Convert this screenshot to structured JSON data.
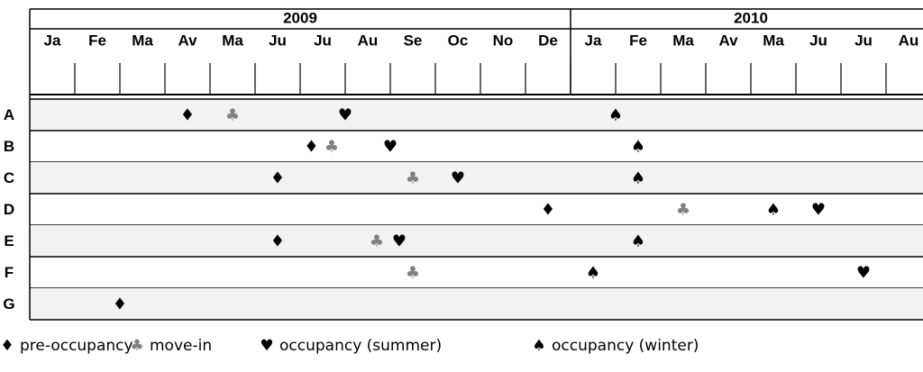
{
  "chart_data": {
    "type": "timeline",
    "years": [
      "2009",
      "2010"
    ],
    "months": [
      "Ja",
      "Fe",
      "Ma",
      "Av",
      "Ma",
      "Ju",
      "Ju",
      "Au",
      "Se",
      "Oc",
      "No",
      "De",
      "Ja",
      "Fe",
      "Ma",
      "Av",
      "Ma",
      "Ju",
      "Ju",
      "Au"
    ],
    "categories": [
      "A",
      "B",
      "C",
      "D",
      "E",
      "F",
      "G"
    ],
    "xlim": [
      0,
      20
    ],
    "series": [
      {
        "name": "pre-occupancy",
        "symbol": "♦",
        "color": "#000000",
        "values": [
          3.5,
          6.25,
          5.5,
          11.5,
          5.5,
          null,
          2
        ]
      },
      {
        "name": "move-in",
        "symbol": "♣",
        "color": "#808080",
        "values": [
          4.5,
          6.7,
          8.5,
          14.5,
          7.7,
          8.5,
          null
        ]
      },
      {
        "name": "occupancy (summer)",
        "symbol": "♥",
        "color": "#000000",
        "values": [
          7,
          8,
          9.5,
          17.5,
          8.2,
          18.5,
          null
        ]
      },
      {
        "name": "occupancy (winter)",
        "symbol": "♠",
        "color": "#000000",
        "values": [
          13,
          13.5,
          13.5,
          16.5,
          13.5,
          12.5,
          null
        ]
      }
    ]
  }
}
